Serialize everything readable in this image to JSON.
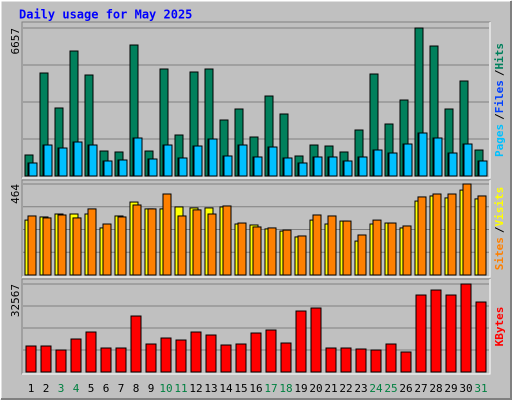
{
  "chart_data": [
    {
      "type": "bar",
      "title": "Daily usage for May 2025",
      "ylim": [
        0,
        6657
      ],
      "yticks": [
        6657
      ],
      "separator": "/",
      "series": [
        {
          "name": "Hits",
          "color": "#00805c",
          "values": [
            945,
            4633,
            3059,
            5622,
            4543,
            1124,
            1080,
            5892,
            1124,
            4813,
            1844,
            4678,
            4813,
            2519,
            3014,
            1754,
            3598,
            2789,
            900,
            1394,
            1349,
            1080,
            2069,
            4588,
            2339,
            3418,
            6657,
            5847,
            3014,
            4273,
            1169
          ]
        },
        {
          "name": "Files",
          "color": "#0040ff",
          "values": [
            585,
            1394,
            1259,
            1529,
            1394,
            675,
            720,
            1709,
            765,
            1394,
            810,
            1349,
            1664,
            900,
            1394,
            855,
            1304,
            810,
            585,
            855,
            855,
            675,
            855,
            1169,
            1034,
            1439,
            1934,
            1709,
            1034,
            1439,
            675
          ]
        },
        {
          "name": "Pages",
          "color": "#00c0ff",
          "values": [
            585,
            1394,
            1259,
            1529,
            1394,
            675,
            720,
            1709,
            765,
            1394,
            810,
            1349,
            1664,
            900,
            1394,
            855,
            1304,
            810,
            585,
            855,
            855,
            675,
            855,
            1169,
            1034,
            1439,
            1934,
            1709,
            1034,
            1439,
            675
          ]
        }
      ]
    },
    {
      "type": "bar",
      "ylim": [
        0,
        464
      ],
      "yticks": [
        464
      ],
      "separator": "/",
      "series": [
        {
          "name": "Visits",
          "color": "#ffff00",
          "values": [
            280,
            296,
            311,
            311,
            311,
            240,
            301,
            372,
            337,
            337,
            347,
            342,
            342,
            347,
            260,
            255,
            235,
            224,
            194,
            280,
            260,
            275,
            173,
            260,
            265,
            240,
            377,
            403,
            393,
            433,
            388
          ]
        },
        {
          "name": "Sites",
          "color": "#ff8000",
          "values": [
            301,
            291,
            306,
            291,
            337,
            260,
            296,
            357,
            337,
            413,
            301,
            332,
            311,
            352,
            265,
            245,
            240,
            229,
            199,
            306,
            301,
            275,
            204,
            280,
            265,
            250,
            398,
            413,
            413,
            464,
            403
          ]
        }
      ]
    },
    {
      "type": "bar",
      "ylim": [
        0,
        32567
      ],
      "yticks": [
        32567
      ],
      "categories": [
        "1",
        "2",
        "3",
        "4",
        "5",
        "6",
        "7",
        "8",
        "9",
        "10",
        "11",
        "12",
        "13",
        "14",
        "15",
        "16",
        "17",
        "18",
        "19",
        "20",
        "21",
        "22",
        "23",
        "24",
        "25",
        "26",
        "27",
        "28",
        "29",
        "30",
        "31"
      ],
      "category_colors": [
        "#000000",
        "#000000",
        "#008040",
        "#008040",
        "#000000",
        "#000000",
        "#000000",
        "#000000",
        "#000000",
        "#008040",
        "#008040",
        "#000000",
        "#000000",
        "#000000",
        "#000000",
        "#000000",
        "#008040",
        "#008040",
        "#000000",
        "#000000",
        "#000000",
        "#000000",
        "#000000",
        "#008040",
        "#008040",
        "#000000",
        "#000000",
        "#000000",
        "#000000",
        "#000000",
        "#008040"
      ],
      "series": [
        {
          "name": "KBytes",
          "color": "#ff0000",
          "values": [
            9620,
            9620,
            8140,
            12210,
            14800,
            8880,
            8880,
            20720,
            10360,
            12580,
            11840,
            14800,
            13690,
            9990,
            10360,
            14430,
            15540,
            10730,
            22570,
            23680,
            8880,
            8880,
            8510,
            8140,
            10360,
            7400,
            28490,
            30340,
            28490,
            32567,
            25900
          ]
        }
      ]
    }
  ]
}
